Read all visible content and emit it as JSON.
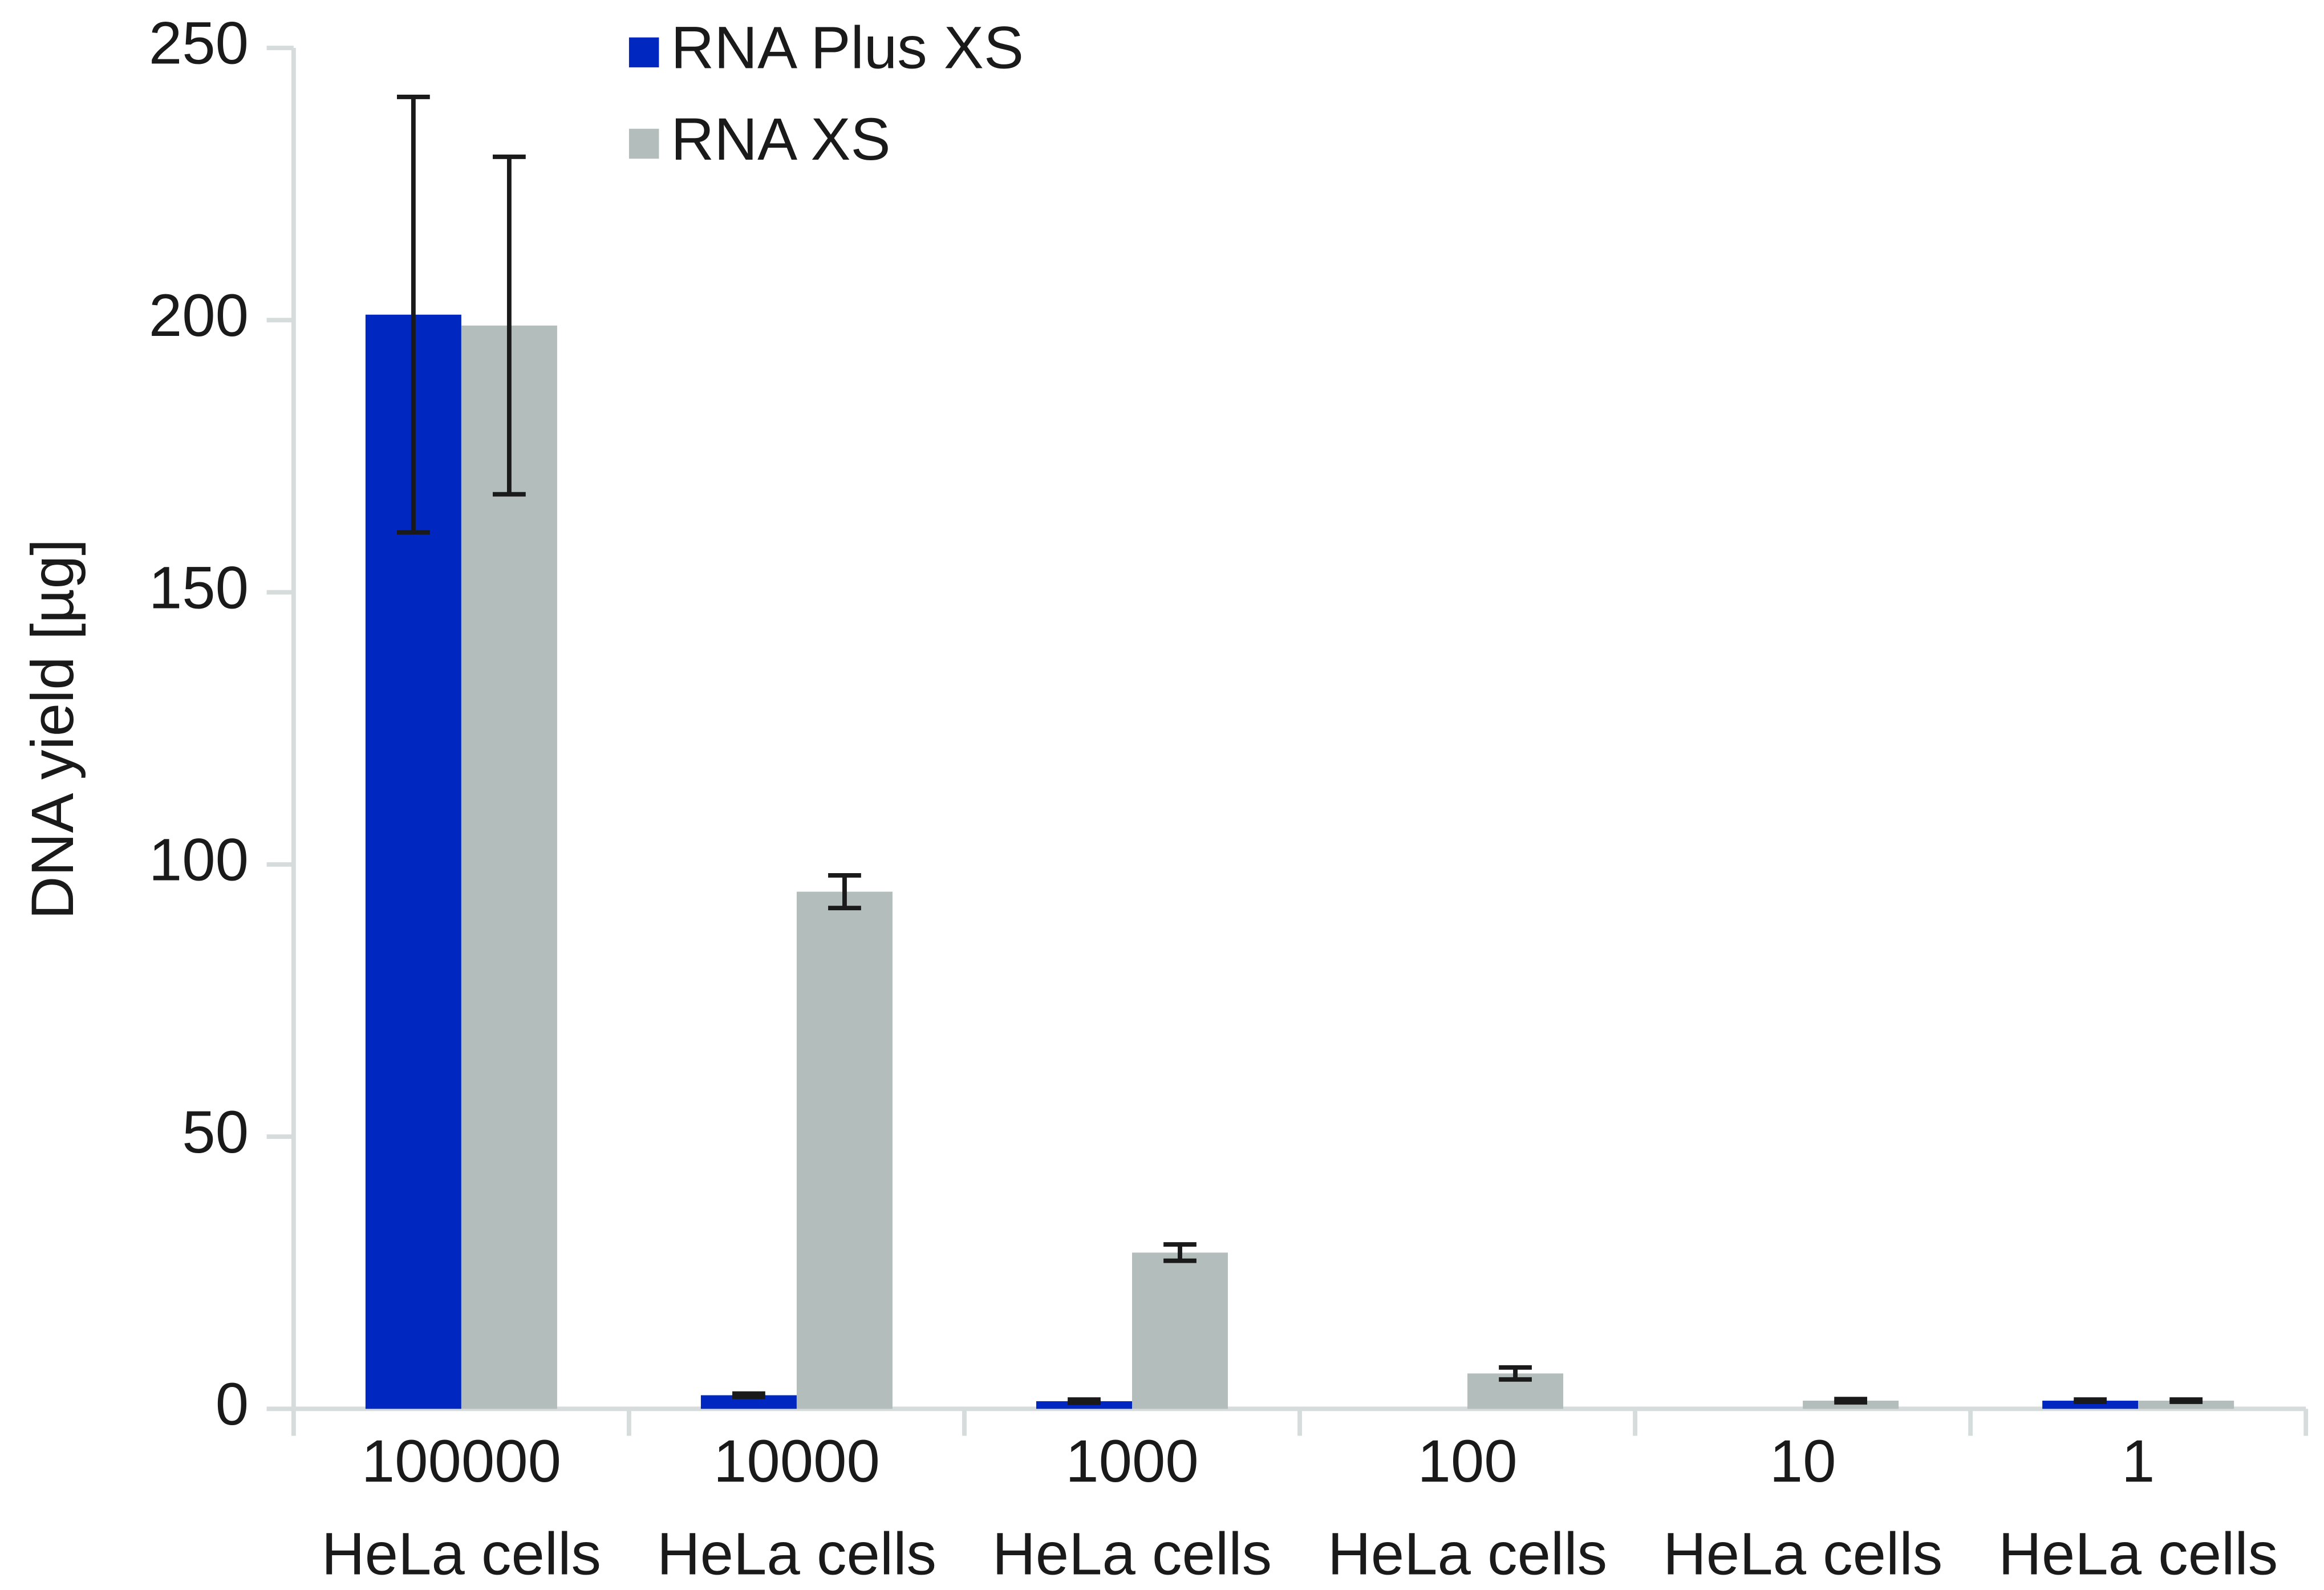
{
  "chart_data": {
    "type": "bar",
    "y_label": "DNA yield [µg]",
    "categories": [
      [
        "100000",
        "HeLa cells"
      ],
      [
        "10000",
        "HeLa cells"
      ],
      [
        "1000",
        "HeLa cells"
      ],
      [
        "100",
        "HeLa cells"
      ],
      [
        "10",
        "HeLa cells"
      ],
      [
        "1",
        "HeLa cells"
      ]
    ],
    "series": [
      {
        "name": "RNA Plus XS",
        "color": "#0028c0",
        "values": [
          201,
          2.5,
          1.4,
          0,
          0,
          1.5
        ],
        "errors": [
          40,
          0.3,
          0.3,
          0,
          0,
          0.2
        ]
      },
      {
        "name": "RNA XS",
        "color": "#b3bdbb",
        "values": [
          199,
          95,
          28.7,
          6.5,
          1.5,
          1.5
        ],
        "errors": [
          31,
          3,
          1.5,
          1.1,
          0.3,
          0.2
        ]
      }
    ],
    "ylim": [
      0,
      250
    ],
    "yticks": [
      0,
      50,
      100,
      150,
      200,
      250
    ],
    "legend": "top"
  }
}
